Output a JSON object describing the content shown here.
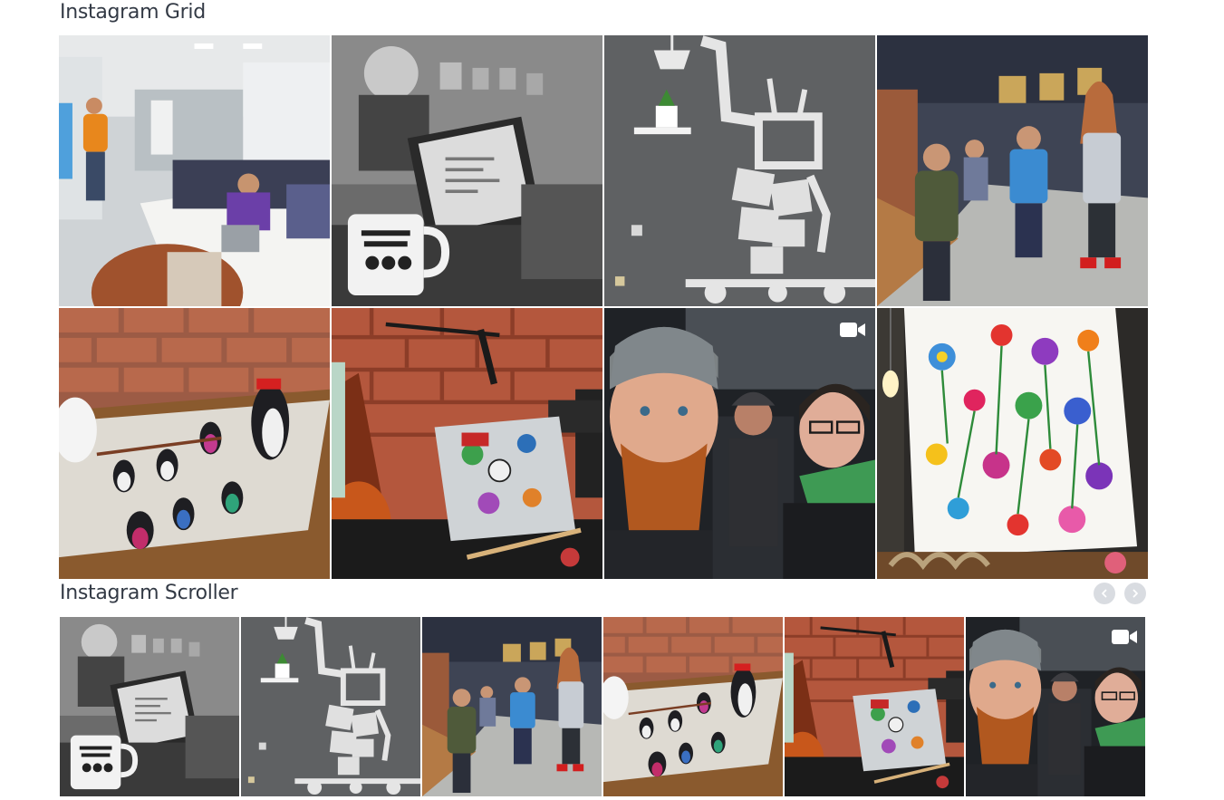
{
  "grid": {
    "title": "Instagram Grid",
    "items": [
      {
        "scene": "classroom",
        "video": false
      },
      {
        "scene": "laptop-mug",
        "video": false
      },
      {
        "scene": "robot-wall",
        "video": false
      },
      {
        "scene": "people-bar",
        "video": false
      },
      {
        "scene": "penguins",
        "video": false
      },
      {
        "scene": "guitar-laptop",
        "video": false
      },
      {
        "scene": "car-selfie",
        "video": true
      },
      {
        "scene": "flower-painting",
        "video": false
      }
    ]
  },
  "scroller": {
    "title": "Instagram Scroller",
    "prev_icon": "chevron-left-icon",
    "next_icon": "chevron-right-icon",
    "items": [
      {
        "scene": "laptop-mug",
        "video": false
      },
      {
        "scene": "robot-wall",
        "video": false
      },
      {
        "scene": "people-bar",
        "video": false
      },
      {
        "scene": "penguins",
        "video": false
      },
      {
        "scene": "guitar-laptop",
        "video": false
      },
      {
        "scene": "car-selfie",
        "video": true
      }
    ]
  },
  "colors": {
    "title": "#333a45",
    "nav_button_bg": "#d9dce1",
    "nav_button_icon": "#ffffff",
    "video_icon": "#ffffff"
  }
}
